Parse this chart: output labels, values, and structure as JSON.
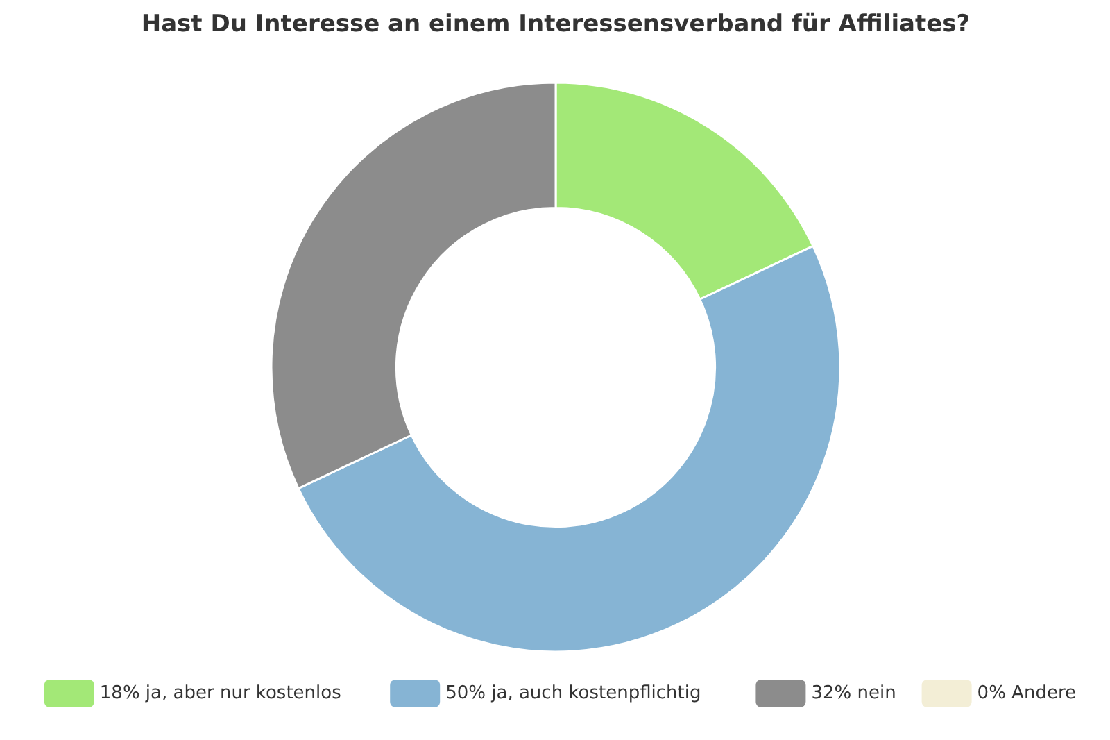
{
  "chart_data": {
    "type": "donut",
    "title": "Hast Du Interesse an einem Interessensverband für Affiliates?",
    "categories": [
      "18% ja, aber nur kostenlos",
      "50% ja, auch kostenpflichtig",
      "32% nein",
      "0% Andere"
    ],
    "values": [
      18,
      50,
      32,
      0
    ],
    "colors": [
      "#a3e877",
      "#86b4d4",
      "#8c8c8c",
      "#f3eed6"
    ],
    "legend": "bottom"
  }
}
